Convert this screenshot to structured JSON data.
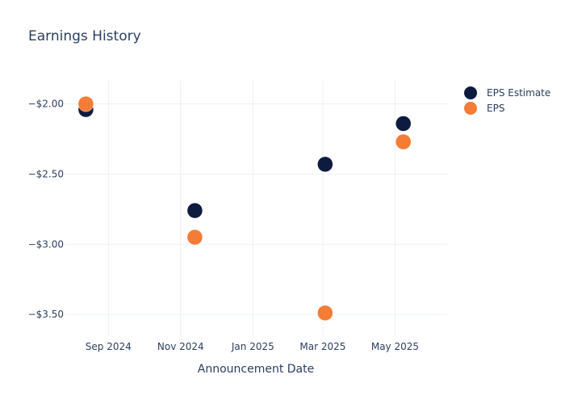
{
  "chart_data": {
    "type": "scatter",
    "title": "Earnings History",
    "xlabel": "Announcement Date",
    "ylabel": "",
    "x_axis_type": "date",
    "xlim": [
      "2024-07-26",
      "2025-06-14"
    ],
    "ylim": [
      -3.655,
      -1.835
    ],
    "x_ticks": [
      {
        "date": "2024-09-01",
        "label": "Sep 2024"
      },
      {
        "date": "2024-11-01",
        "label": "Nov 2024"
      },
      {
        "date": "2025-01-01",
        "label": "Jan 2025"
      },
      {
        "date": "2025-03-01",
        "label": "Mar 2025"
      },
      {
        "date": "2025-05-01",
        "label": "May 2025"
      }
    ],
    "y_ticks": [
      {
        "value": -2.0,
        "label": "−$2.00"
      },
      {
        "value": -2.5,
        "label": "−$2.50"
      },
      {
        "value": -3.0,
        "label": "−$3.00"
      },
      {
        "value": -3.5,
        "label": "−$3.50"
      }
    ],
    "grid": true,
    "legend_position": "top-right",
    "series": [
      {
        "name": "EPS Estimate",
        "color": "#0d1b3e",
        "points": [
          {
            "x": "2024-08-13",
            "y": -2.04
          },
          {
            "x": "2024-11-13",
            "y": -2.76
          },
          {
            "x": "2025-03-03",
            "y": -2.43
          },
          {
            "x": "2025-05-08",
            "y": -2.14
          }
        ]
      },
      {
        "name": "EPS",
        "color": "#f47c36",
        "points": [
          {
            "x": "2024-08-13",
            "y": -2.0
          },
          {
            "x": "2024-11-13",
            "y": -2.95
          },
          {
            "x": "2025-03-03",
            "y": -3.49
          },
          {
            "x": "2025-05-08",
            "y": -2.27
          }
        ]
      }
    ]
  }
}
